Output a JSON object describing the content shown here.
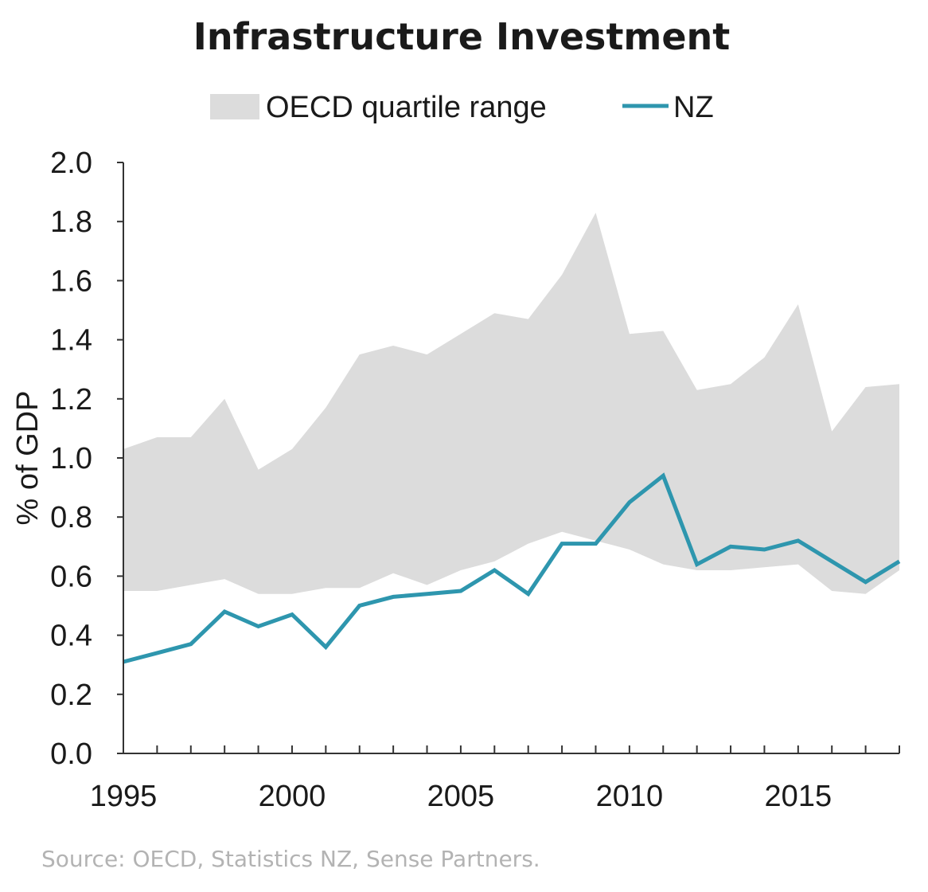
{
  "chart_data": {
    "type": "area",
    "title": "Infrastructure Investment",
    "ylabel": "% of GDP",
    "xlabel": "",
    "xlim": [
      1995,
      2018
    ],
    "ylim": [
      0.0,
      2.0
    ],
    "y_ticks": [
      "0.0",
      "0.2",
      "0.4",
      "0.6",
      "0.8",
      "1.0",
      "1.2",
      "1.4",
      "1.6",
      "1.8",
      "2.0"
    ],
    "x_tick_labels": [
      "1995",
      "2000",
      "2005",
      "2010",
      "2015"
    ],
    "legend": {
      "position": "top-center",
      "entries": [
        "OECD quartile range",
        "NZ"
      ]
    },
    "grid": false,
    "x": [
      1995,
      1996,
      1997,
      1998,
      1999,
      2000,
      2001,
      2002,
      2003,
      2004,
      2005,
      2006,
      2007,
      2008,
      2009,
      2010,
      2011,
      2012,
      2013,
      2014,
      2015,
      2016,
      2017,
      2018
    ],
    "series": [
      {
        "name": "OECD quartile range",
        "kind": "band",
        "color": "#dcdcdc",
        "lower": [
          0.55,
          0.55,
          0.57,
          0.59,
          0.54,
          0.54,
          0.56,
          0.56,
          0.61,
          0.57,
          0.62,
          0.65,
          0.71,
          0.75,
          0.72,
          0.69,
          0.64,
          0.62,
          0.62,
          0.63,
          0.64,
          0.55,
          0.54,
          0.62
        ],
        "upper": [
          1.03,
          1.07,
          1.07,
          1.2,
          0.96,
          1.03,
          1.17,
          1.35,
          1.38,
          1.35,
          1.42,
          1.49,
          1.47,
          1.62,
          1.83,
          1.42,
          1.43,
          1.23,
          1.25,
          1.34,
          1.52,
          1.09,
          1.24,
          1.25
        ]
      },
      {
        "name": "NZ",
        "kind": "line",
        "color": "#2e96ae",
        "values": [
          0.31,
          0.34,
          0.37,
          0.48,
          0.43,
          0.47,
          0.36,
          0.5,
          0.53,
          0.54,
          0.55,
          0.62,
          0.54,
          0.71,
          0.71,
          0.85,
          0.94,
          0.64,
          0.7,
          0.69,
          0.72,
          0.65,
          0.58,
          0.65
        ]
      }
    ],
    "source": "Source: OECD, Statistics NZ, Sense Partners."
  }
}
